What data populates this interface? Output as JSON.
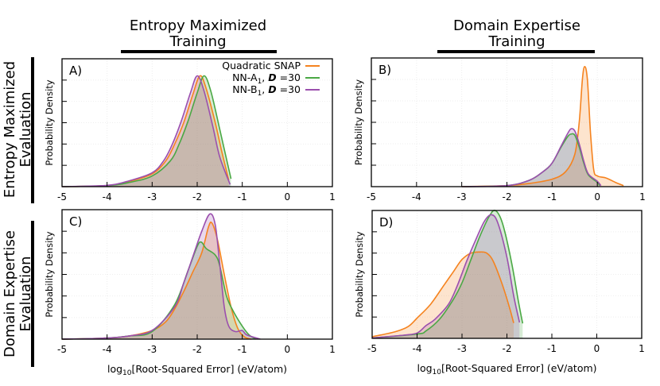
{
  "column_headers": [
    {
      "line1": "Entropy Maximized",
      "line2": "Training"
    },
    {
      "line1": "Domain Expertise",
      "line2": "Training"
    }
  ],
  "row_headers": [
    {
      "line1": "Entropy Maximized",
      "line2": "Evaluation"
    },
    {
      "line1": "Domain Expertise",
      "line2": "Evaluation"
    }
  ],
  "legend": [
    {
      "parts": [
        {
          "t": "Quadratic SNAP"
        }
      ],
      "color": "#f5831f"
    },
    {
      "parts": [
        {
          "t": "NN-A"
        },
        {
          "t": "1",
          "sub": true
        },
        {
          "t": ", "
        },
        {
          "t": "D",
          "b": true
        },
        {
          "t": " =30"
        }
      ],
      "color": "#4aa844"
    },
    {
      "parts": [
        {
          "t": "NN-B"
        },
        {
          "t": "1",
          "sub": true
        },
        {
          "t": ", "
        },
        {
          "t": "D",
          "b": true
        },
        {
          "t": " =30"
        }
      ],
      "color": "#9b4fae"
    }
  ],
  "chart_data": [
    {
      "type": "area",
      "panel": "A)",
      "ylabel": "Probability Density",
      "xlabel": "",
      "xlim": [
        -5,
        1
      ],
      "xticks": [
        "-5",
        "-4",
        "-3",
        "-2",
        "-1",
        "0",
        "1"
      ],
      "grid": true,
      "legend_position": "top-right",
      "series": [
        {
          "name": "Quadratic SNAP",
          "color": "#f5831f",
          "x": [
            -5,
            -4,
            -3.5,
            -3,
            -2.7,
            -2.5,
            -2.3,
            -2.1,
            -1.94,
            -1.8,
            -1.6,
            -1.45,
            -1.3
          ],
          "y": [
            0,
            0.05,
            0.25,
            0.6,
            1.2,
            2.0,
            3.0,
            4.3,
            5.2,
            4.6,
            3.0,
            1.6,
            0.3
          ]
        },
        {
          "name": "NN-A1, D =30",
          "color": "#4aa844",
          "x": [
            -5,
            -4,
            -3.5,
            -3,
            -2.6,
            -2.4,
            -2.2,
            -2.0,
            -1.85,
            -1.7,
            -1.5,
            -1.35,
            -1.25
          ],
          "y": [
            0,
            0.05,
            0.2,
            0.5,
            1.2,
            2.0,
            3.1,
            4.4,
            5.2,
            4.5,
            2.7,
            1.3,
            0.37
          ]
        },
        {
          "name": "NN-B1, D =30",
          "color": "#9b4fae",
          "x": [
            -5,
            -4,
            -3.5,
            -3,
            -2.75,
            -2.55,
            -2.35,
            -2.15,
            -2.0,
            -1.85,
            -1.65,
            -1.5,
            -1.27
          ],
          "y": [
            0,
            0.06,
            0.28,
            0.65,
            1.2,
            2.0,
            3.1,
            4.4,
            5.2,
            4.5,
            2.8,
            1.4,
            0.1
          ]
        }
      ]
    },
    {
      "type": "area",
      "panel": "B)",
      "ylabel": "Probability Density",
      "xlabel": "",
      "xlim": [
        -5,
        1
      ],
      "xticks": [
        "-5",
        "-4",
        "-3",
        "-2",
        "-1",
        "0",
        "1"
      ],
      "grid": true,
      "series": [
        {
          "name": "Quadratic SNAP",
          "color": "#f5831f",
          "x": [
            -3,
            -2,
            -1.5,
            -1,
            -0.7,
            -0.5,
            -0.4,
            -0.33,
            -0.28,
            -0.22,
            -0.15,
            -0.08,
            0,
            0.2,
            0.4,
            0.58
          ],
          "y": [
            0,
            0.05,
            0.15,
            0.35,
            0.7,
            1.5,
            3.0,
            5.0,
            5.6,
            5.0,
            2.5,
            0.8,
            0.5,
            0.4,
            0.2,
            0.05
          ]
        },
        {
          "name": "NN-A1, D =30",
          "color": "#4aa844",
          "x": [
            -3,
            -2,
            -1.5,
            -1.2,
            -1,
            -0.8,
            -0.65,
            -0.58,
            -0.5,
            -0.4,
            -0.3,
            -0.2,
            0,
            0.05
          ],
          "y": [
            0,
            0.05,
            0.3,
            0.7,
            1.1,
            1.85,
            2.35,
            2.45,
            2.4,
            1.85,
            1.1,
            0.55,
            0.2,
            0.05
          ]
        },
        {
          "name": "NN-B1, D =30",
          "color": "#9b4fae",
          "x": [
            -3,
            -2,
            -1.5,
            -1.2,
            -1,
            -0.8,
            -0.65,
            -0.58,
            -0.5,
            -0.4,
            -0.3,
            -0.2,
            0,
            0.08
          ],
          "y": [
            0,
            0.05,
            0.3,
            0.7,
            1.1,
            1.9,
            2.5,
            2.7,
            2.6,
            2.0,
            1.2,
            0.6,
            0.25,
            0.05
          ]
        }
      ]
    },
    {
      "type": "area",
      "panel": "C)",
      "ylabel": "Probability Density",
      "xlabel": "log10[Root-Squared Error] (eV/atom)",
      "xlim": [
        -5,
        1
      ],
      "xticks": [
        "-5",
        "-4",
        "-3",
        "-2",
        "-1",
        "0",
        "1"
      ],
      "grid": true,
      "series": [
        {
          "name": "Quadratic SNAP",
          "color": "#f5831f",
          "x": [
            -5,
            -4,
            -3.5,
            -3,
            -2.7,
            -2.5,
            -2.3,
            -2.1,
            -1.9,
            -1.75,
            -1.67,
            -1.55,
            -1.4,
            -1.25,
            -1.1,
            -0.95,
            -0.8
          ],
          "y": [
            0,
            0.05,
            0.15,
            0.4,
            0.8,
            1.4,
            2.2,
            3.1,
            4.0,
            5.2,
            5.37,
            4.6,
            3.0,
            1.5,
            0.5,
            0.1,
            0
          ]
        },
        {
          "name": "NN-A1, D =30",
          "color": "#4aa844",
          "x": [
            -5,
            -4,
            -3.5,
            -3,
            -2.5,
            -2.2,
            -2.0,
            -1.91,
            -1.8,
            -1.6,
            -1.5,
            -1.35,
            -1.2,
            -1.0,
            -0.85,
            -0.7
          ],
          "y": [
            0,
            0.05,
            0.15,
            0.35,
            1.6,
            3.2,
            4.3,
            4.5,
            4.2,
            3.9,
            3.4,
            2.0,
            1.3,
            0.6,
            0.2,
            0
          ]
        },
        {
          "name": "NN-B1, D =30",
          "color": "#9b4fae",
          "x": [
            -5,
            -4,
            -3.5,
            -3,
            -2.5,
            -2.3,
            -2.1,
            -1.9,
            -1.72,
            -1.6,
            -1.5,
            -1.4,
            -1.3,
            -1.15,
            -1.0,
            -0.9,
            -0.6
          ],
          "y": [
            0,
            0.05,
            0.15,
            0.4,
            1.5,
            2.6,
            3.8,
            5.0,
            5.8,
            5.3,
            3.5,
            1.5,
            0.6,
            0.35,
            0.4,
            0.2,
            0
          ]
        }
      ]
    },
    {
      "type": "area",
      "panel": "D)",
      "ylabel": "Probability Density",
      "xlabel": "log10[Root-Squared Error] (eV/atom)",
      "xlim": [
        -5,
        1
      ],
      "xticks": [
        "-5",
        "-4",
        "-3",
        "-2",
        "-1",
        "0",
        "1"
      ],
      "grid": true,
      "series": [
        {
          "name": "Quadratic SNAP",
          "color": "#f5831f",
          "x": [
            -5,
            -4.5,
            -4.2,
            -4,
            -3.7,
            -3.4,
            -3.2,
            -3,
            -2.8,
            -2.6,
            -2.45,
            -2.3,
            -2.1,
            -1.95,
            -1.85
          ],
          "y": [
            0.08,
            0.3,
            0.55,
            0.95,
            1.6,
            2.5,
            3.1,
            3.7,
            4.0,
            4.05,
            4.0,
            3.6,
            2.5,
            1.5,
            0.72
          ]
        },
        {
          "name": "NN-A1, D =30",
          "color": "#4aa844",
          "x": [
            -5,
            -4,
            -3.8,
            -3.5,
            -3.2,
            -3,
            -2.8,
            -2.6,
            -2.4,
            -2.26,
            -2.1,
            -1.9,
            -1.75,
            -1.65
          ],
          "y": [
            0.02,
            0.2,
            0.35,
            0.9,
            1.8,
            2.6,
            3.7,
            4.8,
            5.7,
            6.0,
            5.4,
            3.6,
            1.8,
            0.7
          ]
        },
        {
          "name": "NN-B1, D =30",
          "color": "#9b4fae",
          "x": [
            -5,
            -4.3,
            -4,
            -3.8,
            -3.6,
            -3.3,
            -3.1,
            -2.9,
            -2.7,
            -2.5,
            -2.34,
            -2.2,
            -2.0,
            -1.85,
            -1.72
          ],
          "y": [
            0.02,
            0.15,
            0.25,
            0.6,
            0.9,
            1.6,
            2.5,
            3.6,
            4.6,
            5.5,
            5.8,
            5.4,
            3.8,
            2.0,
            0.75
          ]
        }
      ]
    }
  ]
}
